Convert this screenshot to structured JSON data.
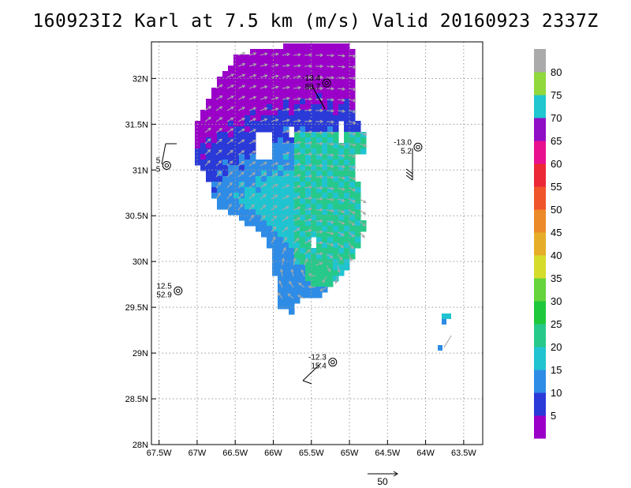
{
  "title": "160923I2 Karl at 7.5 km (m/s) Valid 20160923 2337Z",
  "chart_data": {
    "type": "heatmap",
    "x_ticks": [
      "67.5W",
      "67W",
      "66.5W",
      "66W",
      "65.5W",
      "65W",
      "64.5W",
      "64W",
      "63.5W"
    ],
    "y_ticks": [
      "28N",
      "28.5N",
      "29N",
      "29.5N",
      "30N",
      "30.5N",
      "31N",
      "31.5N",
      "32N"
    ],
    "xlim": [
      -67.6,
      -63.25
    ],
    "ylim": [
      28,
      32.4
    ],
    "grid": true,
    "colorbar": {
      "labels": [
        "5",
        "10",
        "15",
        "20",
        "25",
        "30",
        "35",
        "40",
        "45",
        "50",
        "55",
        "60",
        "65",
        "70",
        "75",
        "80"
      ],
      "colors": [
        "#9a00c8",
        "#2a3ad8",
        "#2e8ce6",
        "#20c4d0",
        "#26c98a",
        "#1ec83c",
        "#66d43c",
        "#d6dc2a",
        "#e6ae28",
        "#ec8a2a",
        "#f0542a",
        "#ec2836",
        "#e8108e",
        "#8e0fc6",
        "#20c6d0",
        "#90d83c",
        "#aaaaaa"
      ]
    },
    "observations": [
      {
        "lat": 31.95,
        "lon": -65.3,
        "top": "-13.4",
        "bottom": "80.7"
      },
      {
        "lat": 31.25,
        "lon": -64.1,
        "top": "-13.0",
        "bottom": "5.2"
      },
      {
        "lat": 31.05,
        "lon": -67.4,
        "top": "5",
        "bottom": "5"
      },
      {
        "lat": 29.68,
        "lon": -67.25,
        "top": "12.5",
        "bottom": "52.9"
      },
      {
        "lat": 28.9,
        "lon": -65.22,
        "top": "-12.3",
        "bottom": "15.4"
      }
    ],
    "reference_vector": {
      "value": "50",
      "units": "m/s"
    }
  }
}
